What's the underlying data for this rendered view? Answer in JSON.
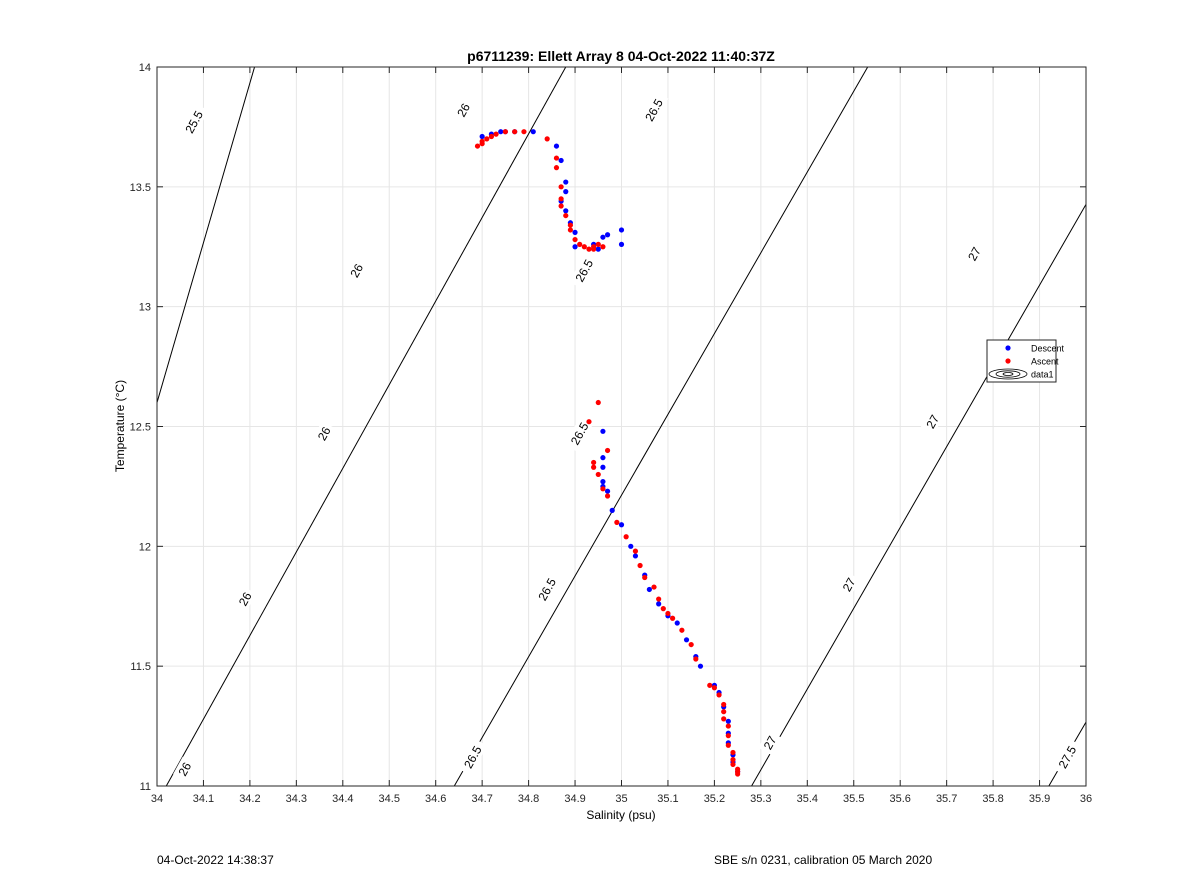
{
  "chart_data": {
    "type": "scatter",
    "title": "p6711239: Ellett Array 8 04-Oct-2022 11:40:37Z",
    "xlabel": "Salinity (psu)",
    "ylabel": "Temperature (°C)",
    "xlim": [
      34,
      36
    ],
    "ylim": [
      11,
      14
    ],
    "xticks": [
      "34",
      "34.1",
      "34.2",
      "34.3",
      "34.4",
      "34.5",
      "34.6",
      "34.7",
      "34.8",
      "34.9",
      "35",
      "35.1",
      "35.2",
      "35.3",
      "35.4",
      "35.5",
      "35.6",
      "35.7",
      "35.8",
      "35.9",
      "36"
    ],
    "yticks": [
      "11",
      "11.5",
      "12",
      "12.5",
      "13",
      "13.5",
      "14"
    ],
    "grid": true,
    "legend_position": "right",
    "legend": [
      {
        "label": "Descent",
        "color": "#0000ff",
        "marker": "dot"
      },
      {
        "label": "Ascent",
        "color": "#ff0000",
        "marker": "dot"
      },
      {
        "label": "data1",
        "color": "#000000",
        "marker": "contour"
      }
    ],
    "series": [
      {
        "name": "Descent",
        "color": "#0000ff",
        "points": [
          [
            34.7,
            13.71
          ],
          [
            34.72,
            13.72
          ],
          [
            34.74,
            13.73
          ],
          [
            34.75,
            13.73
          ],
          [
            34.77,
            13.73
          ],
          [
            34.81,
            13.73
          ],
          [
            34.86,
            13.67
          ],
          [
            34.87,
            13.61
          ],
          [
            34.88,
            13.52
          ],
          [
            34.88,
            13.48
          ],
          [
            34.87,
            13.44
          ],
          [
            34.88,
            13.4
          ],
          [
            34.89,
            13.35
          ],
          [
            34.9,
            13.31
          ],
          [
            34.9,
            13.25
          ],
          [
            34.94,
            13.26
          ],
          [
            34.95,
            13.24
          ],
          [
            34.96,
            13.29
          ],
          [
            34.97,
            13.3
          ],
          [
            35.0,
            13.32
          ],
          [
            35.0,
            13.26
          ],
          [
            34.96,
            12.48
          ],
          [
            34.96,
            12.37
          ],
          [
            34.96,
            12.33
          ],
          [
            34.96,
            12.27
          ],
          [
            34.96,
            12.25
          ],
          [
            34.97,
            12.23
          ],
          [
            34.98,
            12.15
          ],
          [
            35.0,
            12.09
          ],
          [
            35.02,
            12.0
          ],
          [
            35.03,
            11.96
          ],
          [
            35.05,
            11.88
          ],
          [
            35.06,
            11.82
          ],
          [
            35.08,
            11.76
          ],
          [
            35.1,
            11.71
          ],
          [
            35.12,
            11.68
          ],
          [
            35.14,
            11.61
          ],
          [
            35.16,
            11.54
          ],
          [
            35.17,
            11.5
          ],
          [
            35.2,
            11.42
          ],
          [
            35.21,
            11.39
          ],
          [
            35.22,
            11.33
          ],
          [
            35.23,
            11.27
          ],
          [
            35.23,
            11.22
          ],
          [
            35.23,
            11.18
          ],
          [
            35.24,
            11.13
          ],
          [
            35.24,
            11.1
          ],
          [
            35.25,
            11.06
          ]
        ]
      },
      {
        "name": "Ascent",
        "color": "#ff0000",
        "points": [
          [
            34.69,
            13.67
          ],
          [
            34.7,
            13.68
          ],
          [
            34.7,
            13.69
          ],
          [
            34.71,
            13.7
          ],
          [
            34.72,
            13.71
          ],
          [
            34.73,
            13.72
          ],
          [
            34.75,
            13.73
          ],
          [
            34.77,
            13.73
          ],
          [
            34.79,
            13.73
          ],
          [
            34.84,
            13.7
          ],
          [
            34.86,
            13.62
          ],
          [
            34.86,
            13.58
          ],
          [
            34.87,
            13.5
          ],
          [
            34.87,
            13.45
          ],
          [
            34.87,
            13.42
          ],
          [
            34.88,
            13.38
          ],
          [
            34.89,
            13.34
          ],
          [
            34.89,
            13.32
          ],
          [
            34.9,
            13.28
          ],
          [
            34.91,
            13.26
          ],
          [
            34.92,
            13.25
          ],
          [
            34.93,
            13.24
          ],
          [
            34.94,
            13.25
          ],
          [
            34.94,
            13.24
          ],
          [
            34.95,
            13.26
          ],
          [
            34.96,
            13.25
          ],
          [
            34.95,
            12.6
          ],
          [
            34.93,
            12.52
          ],
          [
            34.97,
            12.4
          ],
          [
            34.94,
            12.35
          ],
          [
            34.94,
            12.33
          ],
          [
            34.95,
            12.3
          ],
          [
            34.96,
            12.24
          ],
          [
            34.97,
            12.21
          ],
          [
            34.99,
            12.1
          ],
          [
            35.01,
            12.04
          ],
          [
            35.03,
            11.98
          ],
          [
            35.04,
            11.92
          ],
          [
            35.05,
            11.87
          ],
          [
            35.07,
            11.83
          ],
          [
            35.08,
            11.78
          ],
          [
            35.09,
            11.74
          ],
          [
            35.1,
            11.72
          ],
          [
            35.11,
            11.7
          ],
          [
            35.13,
            11.65
          ],
          [
            35.15,
            11.59
          ],
          [
            35.16,
            11.53
          ],
          [
            35.19,
            11.42
          ],
          [
            35.2,
            11.41
          ],
          [
            35.21,
            11.38
          ],
          [
            35.22,
            11.34
          ],
          [
            35.22,
            11.31
          ],
          [
            35.22,
            11.28
          ],
          [
            35.23,
            11.25
          ],
          [
            35.23,
            11.21
          ],
          [
            35.23,
            11.17
          ],
          [
            35.24,
            11.14
          ],
          [
            35.24,
            11.11
          ],
          [
            35.24,
            11.09
          ],
          [
            35.25,
            11.07
          ],
          [
            35.25,
            11.06
          ],
          [
            35.25,
            11.05
          ]
        ]
      }
    ],
    "contours": [
      {
        "level": "25.5",
        "s_at_t11": 33.76,
        "s_at_t14": 34.21
      },
      {
        "level": "26",
        "s_at_t11": 34.02,
        "s_at_t14": 34.88
      },
      {
        "level": "26.5",
        "s_at_t11": 34.64,
        "s_at_t14": 35.53
      },
      {
        "level": "27",
        "s_at_t11": 35.28,
        "s_at_t14": 36.17
      },
      {
        "level": "27.5",
        "s_at_t11": 35.92,
        "s_at_t14": 36.82
      }
    ],
    "contour_labels": [
      {
        "text": "25.5",
        "s": 34.08,
        "t": 13.77
      },
      {
        "text": "26",
        "s": 34.66,
        "t": 13.82
      },
      {
        "text": "26",
        "s": 34.43,
        "t": 13.15
      },
      {
        "text": "26",
        "s": 34.36,
        "t": 12.47
      },
      {
        "text": "26",
        "s": 34.19,
        "t": 11.78
      },
      {
        "text": "26",
        "s": 34.06,
        "t": 11.07
      },
      {
        "text": "26.5",
        "s": 35.07,
        "t": 13.82
      },
      {
        "text": "26.5",
        "s": 34.92,
        "t": 13.15
      },
      {
        "text": "26.5",
        "s": 34.91,
        "t": 12.47
      },
      {
        "text": "26.5",
        "s": 34.84,
        "t": 11.82
      },
      {
        "text": "26.5",
        "s": 34.68,
        "t": 11.12
      },
      {
        "text": "27",
        "s": 35.76,
        "t": 13.22
      },
      {
        "text": "27",
        "s": 35.67,
        "t": 12.52
      },
      {
        "text": "27",
        "s": 35.49,
        "t": 11.84
      },
      {
        "text": "27",
        "s": 35.32,
        "t": 11.18
      },
      {
        "text": "27.5",
        "s": 35.96,
        "t": 11.12
      }
    ]
  },
  "footer": {
    "left": "04-Oct-2022 14:38:37",
    "right": "SBE s/n 0231, calibration 05 March 2020"
  }
}
